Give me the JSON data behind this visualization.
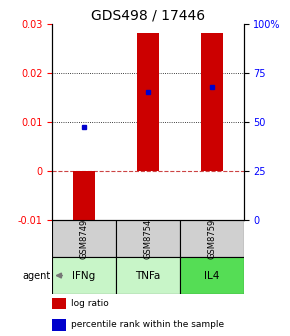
{
  "title": "GDS498 / 17446",
  "samples": [
    "GSM8749",
    "GSM8754",
    "GSM8759"
  ],
  "agents": [
    "IFNg",
    "TNFa",
    "IL4"
  ],
  "log_ratios": [
    -0.011,
    0.028,
    0.028
  ],
  "percentile_values": [
    0.009,
    0.016,
    0.017
  ],
  "ylim_left": [
    -0.01,
    0.03
  ],
  "ylim_right": [
    0,
    100
  ],
  "yticks_left": [
    -0.01,
    0,
    0.01,
    0.02,
    0.03
  ],
  "yticks_right": [
    0,
    25,
    50,
    75,
    100
  ],
  "ytick_right_labels": [
    "0",
    "25",
    "50",
    "75",
    "100%"
  ],
  "hlines": [
    0.01,
    0.02
  ],
  "zero_line": 0,
  "bar_color": "#cc0000",
  "square_color": "#0000cc",
  "agent_colors": [
    "#c8f5c8",
    "#c8f5c8",
    "#55dd55"
  ],
  "sample_bg": "#d0d0d0",
  "bar_width": 0.35,
  "title_fontsize": 10,
  "tick_fontsize": 7,
  "legend_fontsize": 6.5,
  "label_fontsize": 7.5,
  "agent_label_fontsize": 7,
  "sample_label_fontsize": 6
}
